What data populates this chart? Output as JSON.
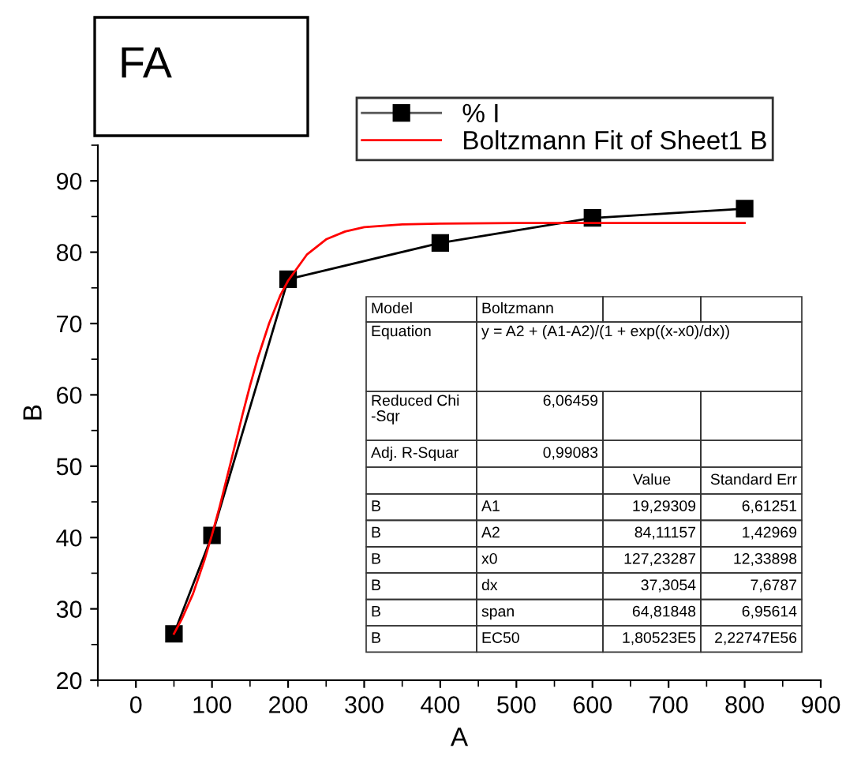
{
  "chart_data": {
    "type": "line",
    "title": "FA",
    "xlabel": "A",
    "ylabel": "B",
    "xlim": [
      -50,
      900
    ],
    "xticks": [
      0,
      100,
      200,
      300,
      400,
      500,
      600,
      700,
      800,
      900
    ],
    "ylim": [
      20,
      95
    ],
    "yticks": [
      20,
      30,
      40,
      50,
      60,
      70,
      80,
      90
    ],
    "grid": false,
    "legend": "top",
    "series": [
      {
        "name": "% I",
        "color": "#000000",
        "marker": "square",
        "x": [
          50,
          100,
          200,
          400,
          600,
          800
        ],
        "values": [
          26.5,
          40.3,
          76.2,
          81.3,
          84.8,
          86.1
        ]
      },
      {
        "name": "Boltzmann Fit of Sheet1 B",
        "color": "#ff0000",
        "marker": "none",
        "x": [
          50,
          60,
          75,
          90,
          100,
          110,
          125,
          140,
          150,
          160,
          175,
          190,
          200,
          225,
          250,
          275,
          300,
          350,
          400,
          500,
          600,
          700,
          800
        ],
        "values": [
          26.5,
          28.5,
          32.1,
          36.8,
          40.4,
          44.3,
          50.7,
          57.2,
          61.3,
          65.1,
          70.0,
          74.0,
          76.0,
          79.7,
          81.8,
          82.9,
          83.5,
          83.9,
          84.0,
          84.1,
          84.1,
          84.1,
          84.1
        ]
      }
    ],
    "annotations": [
      "Model",
      "Boltzmann",
      "Equation",
      "y = A2 + (A1-A2)/(1 + exp((x-x0)/dx))",
      "Reduced Chi\n-Sqr",
      "6,06459",
      "Adj. R-Squar",
      "0,99083",
      "Value",
      "Standard Err",
      "B",
      "A1",
      "19,29309",
      "6,61251",
      "B",
      "A2",
      "84,11157",
      "1,42969",
      "B",
      "x0",
      "127,23287",
      "12,33898",
      "B",
      "dx",
      "37,3054",
      "7,6787",
      "B",
      "span",
      "64,81848",
      "6,95614",
      "B",
      "EC50",
      "1,80523E5",
      "2,22747E56"
    ]
  }
}
